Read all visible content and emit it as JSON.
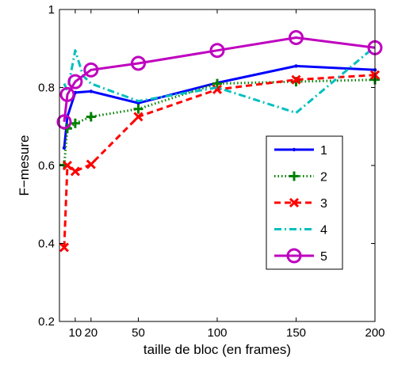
{
  "chart_data": {
    "type": "line",
    "xlabel": "taille de bloc (en frames)",
    "ylabel": "F−mesure",
    "xlim": [
      0,
      200
    ],
    "ylim": [
      0.2,
      1.0
    ],
    "xticks": [
      10,
      20,
      50,
      100,
      150,
      200
    ],
    "xtick_labels": [
      "10",
      "20",
      "50",
      "100",
      "150",
      "200"
    ],
    "yticks": [
      0.2,
      0.4,
      0.6,
      0.8,
      1.0
    ],
    "ytick_labels": [
      "0.2",
      "0.4",
      "0.6",
      "0.8",
      "1"
    ],
    "grid": false,
    "legend_position": "right",
    "series": [
      {
        "name": "1",
        "color": "#0000ff",
        "line": "solid",
        "marker": "dot",
        "x": [
          3,
          5,
          10,
          20,
          50,
          100,
          150,
          200
        ],
        "y": [
          0.645,
          0.725,
          0.787,
          0.79,
          0.76,
          0.812,
          0.855,
          0.845
        ]
      },
      {
        "name": "2",
        "color": "#008000",
        "line": "dotted",
        "marker": "plus",
        "x": [
          3,
          5,
          10,
          20,
          50,
          100,
          150,
          200
        ],
        "y": [
          0.601,
          0.695,
          0.708,
          0.725,
          0.745,
          0.81,
          0.815,
          0.82
        ]
      },
      {
        "name": "3",
        "color": "#ff0000",
        "line": "dashed",
        "marker": "x",
        "x": [
          3,
          5,
          10,
          20,
          50,
          100,
          150,
          200
        ],
        "y": [
          0.39,
          0.6,
          0.585,
          0.603,
          0.725,
          0.795,
          0.82,
          0.832
        ]
      },
      {
        "name": "4",
        "color": "#00bfbf",
        "line": "dashdot",
        "marker": "none",
        "x": [
          3,
          5,
          10,
          15,
          20,
          50,
          100,
          150,
          200
        ],
        "y": [
          0.81,
          0.79,
          0.895,
          0.83,
          0.81,
          0.765,
          0.8,
          0.735,
          0.905
        ]
      },
      {
        "name": "5",
        "color": "#bf00bf",
        "line": "solid",
        "marker": "circle",
        "x": [
          3,
          5,
          10,
          20,
          50,
          100,
          150,
          200
        ],
        "y": [
          0.712,
          0.782,
          0.815,
          0.845,
          0.862,
          0.895,
          0.928,
          0.902
        ]
      }
    ]
  }
}
